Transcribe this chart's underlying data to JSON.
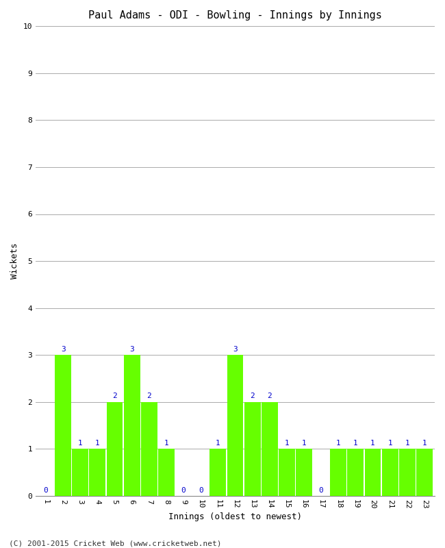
{
  "title": "Paul Adams - ODI - Bowling - Innings by Innings",
  "xlabel": "Innings (oldest to newest)",
  "ylabel": "Wickets",
  "innings": [
    1,
    2,
    3,
    4,
    5,
    6,
    7,
    8,
    9,
    10,
    11,
    12,
    13,
    14,
    15,
    16,
    17,
    18,
    19,
    20,
    21,
    22,
    23
  ],
  "wickets": [
    0,
    3,
    1,
    1,
    2,
    3,
    2,
    1,
    0,
    0,
    1,
    3,
    2,
    2,
    1,
    1,
    0,
    1,
    1,
    1,
    1,
    1,
    1
  ],
  "bar_color": "#66ff00",
  "label_color": "#0000cc",
  "ylim": [
    0,
    10
  ],
  "yticks": [
    0,
    1,
    2,
    3,
    4,
    5,
    6,
    7,
    8,
    9,
    10
  ],
  "background_color": "#ffffff",
  "grid_color": "#aaaaaa",
  "footer": "(C) 2001-2015 Cricket Web (www.cricketweb.net)",
  "title_fontsize": 11,
  "axis_label_fontsize": 9,
  "tick_fontsize": 8,
  "value_label_fontsize": 8,
  "footer_fontsize": 8
}
